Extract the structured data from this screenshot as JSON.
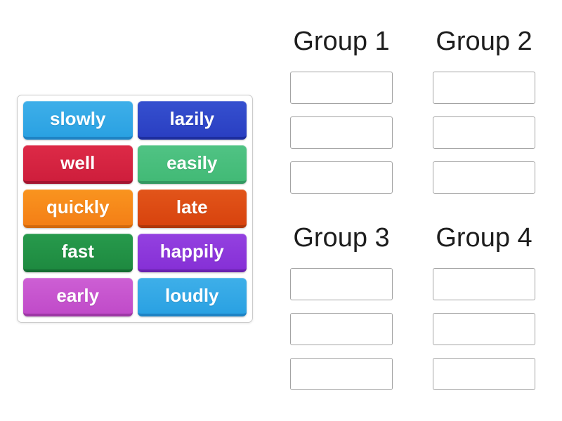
{
  "activity": {
    "word_bank": {
      "tiles": [
        {
          "label": "slowly",
          "color_top": "#3eafe9",
          "color_base": "#2aa1e2",
          "edge_color": "#1e83c4"
        },
        {
          "label": "lazily",
          "color_top": "#3550cf",
          "color_base": "#2a3fc2",
          "edge_color": "#1d2d9e"
        },
        {
          "label": "well",
          "color_top": "#dd2a47",
          "color_base": "#ce1e3c",
          "edge_color": "#a31530"
        },
        {
          "label": "easily",
          "color_top": "#50c384",
          "color_base": "#42ba76",
          "edge_color": "#339862"
        },
        {
          "label": "quickly",
          "color_top": "#f9941f",
          "color_base": "#f47f16",
          "edge_color": "#d2690e"
        },
        {
          "label": "late",
          "color_top": "#e2551a",
          "color_base": "#d8430e",
          "edge_color": "#ae370b"
        },
        {
          "label": "fast",
          "color_top": "#279a4c",
          "color_base": "#1e8a40",
          "edge_color": "#156d32"
        },
        {
          "label": "happily",
          "color_top": "#9441e0",
          "color_base": "#8630d6",
          "edge_color": "#6b22b0"
        },
        {
          "label": "early",
          "color_top": "#cd5fd4",
          "color_base": "#c04bc9",
          "edge_color": "#9d38a5"
        },
        {
          "label": "loudly",
          "color_top": "#3eafe9",
          "color_base": "#2aa1e2",
          "edge_color": "#1e83c4"
        }
      ]
    },
    "groups": [
      {
        "title": "Group 1",
        "slot_count": 3
      },
      {
        "title": "Group 2",
        "slot_count": 3
      },
      {
        "title": "Group 3",
        "slot_count": 3
      },
      {
        "title": "Group 4",
        "slot_count": 3
      }
    ]
  },
  "theme": {
    "page_background": "#ffffff",
    "panel_border_color": "#cbcbcb",
    "slot_border_color": "#a3a3a3",
    "header_text_color": "#1d1d1d",
    "tile_text_color": "#ffffff"
  }
}
